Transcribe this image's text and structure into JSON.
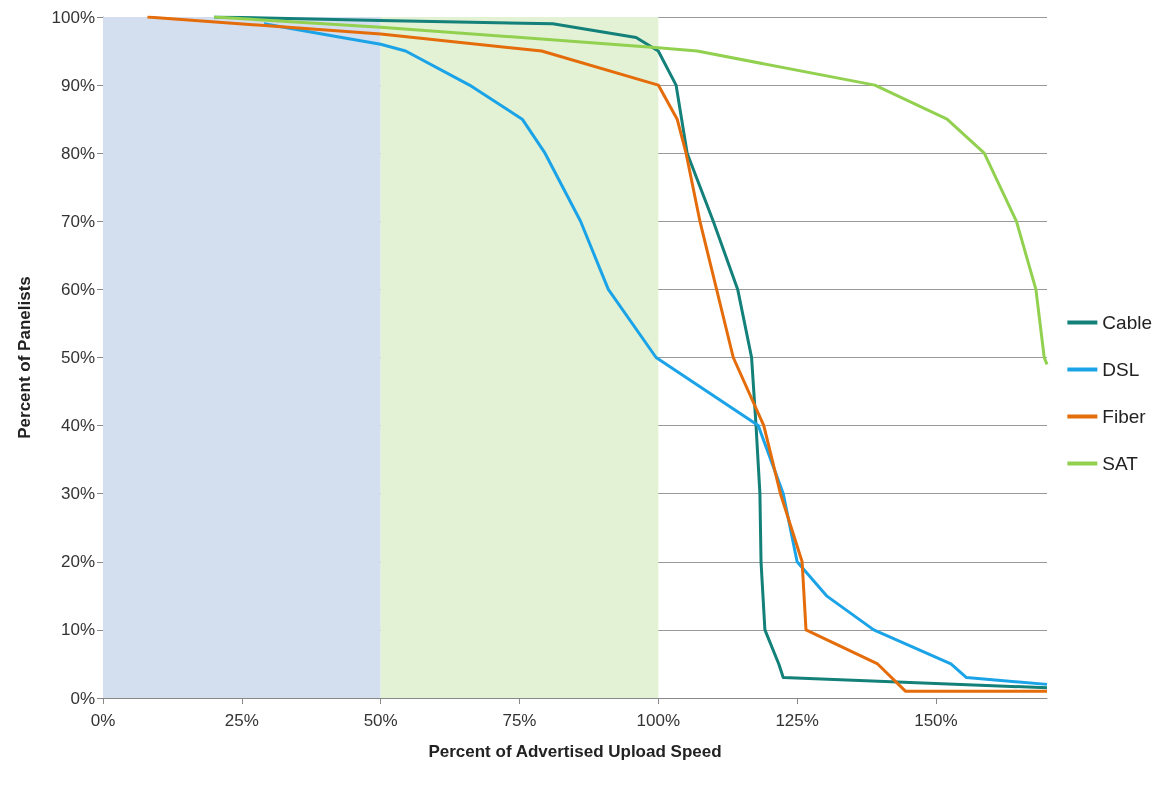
{
  "chart_data": {
    "type": "line",
    "xlabel": "Percent of Advertised Upload Speed",
    "ylabel": "Percent of Panelists",
    "xlim": [
      0,
      170
    ],
    "ylim": [
      0,
      100
    ],
    "xticks": [
      {
        "value": 0,
        "label": "0%"
      },
      {
        "value": 25,
        "label": "25%"
      },
      {
        "value": 50,
        "label": "50%"
      },
      {
        "value": 75,
        "label": "75%"
      },
      {
        "value": 100,
        "label": "100%"
      },
      {
        "value": 125,
        "label": "125%"
      },
      {
        "value": 150,
        "label": "150%"
      }
    ],
    "yticks": [
      {
        "value": 0,
        "label": "0%"
      },
      {
        "value": 10,
        "label": "10%"
      },
      {
        "value": 20,
        "label": "20%"
      },
      {
        "value": 30,
        "label": "30%"
      },
      {
        "value": 40,
        "label": "40%"
      },
      {
        "value": 50,
        "label": "50%"
      },
      {
        "value": 60,
        "label": "60%"
      },
      {
        "value": 70,
        "label": "70%"
      },
      {
        "value": 80,
        "label": "80%"
      },
      {
        "value": 90,
        "label": "90%"
      },
      {
        "value": 100,
        "label": "100%"
      }
    ],
    "grid": "y",
    "legend": "right",
    "marker": "none",
    "line_style": "solid",
    "bands": [
      {
        "axis": "x",
        "from": 0,
        "to": 50,
        "color": "#d3dfee"
      },
      {
        "axis": "x",
        "from": 50,
        "to": 100,
        "color": "#e3f1d5"
      }
    ],
    "series": [
      {
        "name": "Cable",
        "color": "#138079",
        "x": [
          20,
          50,
          81,
          96,
          100,
          103.2,
          105.2,
          109.9,
          114.3,
          116.8,
          117.6,
          118.3,
          118.5,
          119.2,
          121.7,
          122.5,
          170
        ],
        "values": [
          100,
          99.5,
          99,
          97,
          95,
          90,
          80,
          70,
          60,
          50,
          40,
          30,
          20,
          10,
          5,
          3,
          1.5
        ]
      },
      {
        "name": "DSL",
        "color": "#1ba3e8",
        "x": [
          29,
          43,
          50,
          54.5,
          66,
          75.5,
          79.6,
          86,
          91,
          99.6,
          118,
          122.5,
          125,
          130.3,
          138.8,
          152.7,
          155.5,
          170
        ],
        "values": [
          99,
          97,
          96,
          95,
          90,
          85,
          80,
          70,
          60,
          50,
          40,
          30,
          20,
          15,
          10,
          5,
          3,
          2
        ]
      },
      {
        "name": "Fiber",
        "color": "#e46c0a",
        "x": [
          8,
          50,
          79,
          100,
          103.4,
          105,
          107.5,
          113.5,
          119,
          122,
          125.9,
          126.6,
          139.5,
          144.5,
          170
        ],
        "values": [
          100,
          97.5,
          95,
          90,
          85,
          80,
          70,
          50,
          40,
          30,
          20,
          10,
          5,
          1,
          1
        ]
      },
      {
        "name": "SAT",
        "color": "#92d050",
        "x": [
          20,
          50,
          100,
          107,
          139,
          152,
          158.7,
          164.5,
          168,
          169.5,
          170
        ],
        "values": [
          100,
          98.5,
          95.5,
          95,
          90,
          85,
          80,
          70,
          60,
          50,
          49
        ]
      }
    ]
  }
}
